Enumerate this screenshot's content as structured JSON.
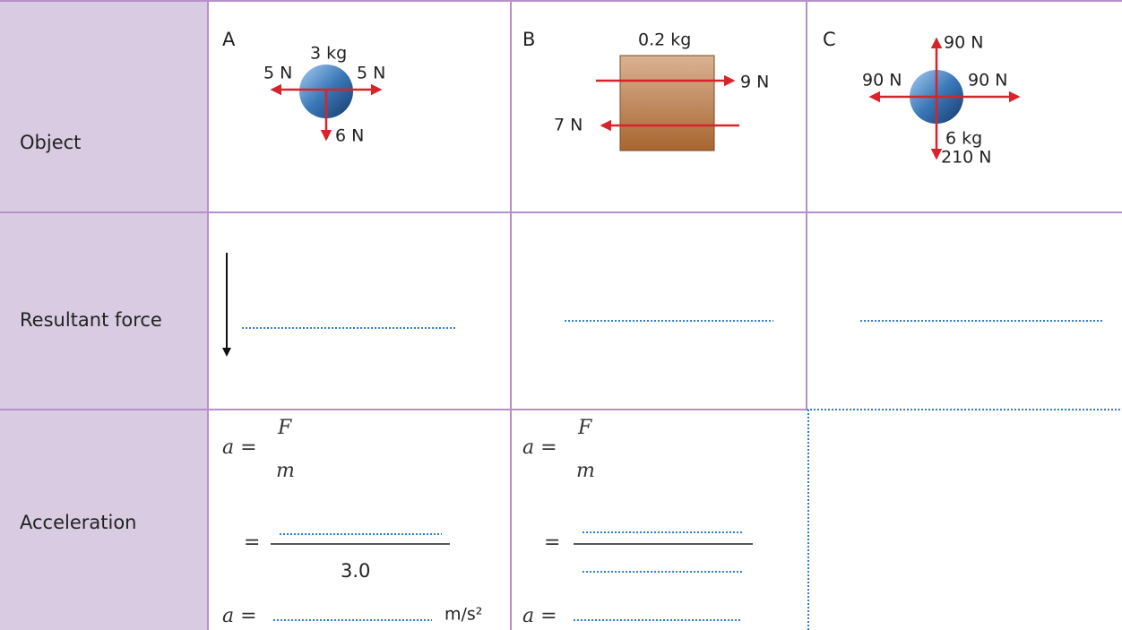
{
  "table": {
    "row_headers": [
      "Object",
      "Resultant force",
      "Acceleration"
    ],
    "objects": [
      {
        "label": "A",
        "mass": "3 kg",
        "forces": {
          "left": "5 N",
          "right": "5 N",
          "down": "6 N"
        }
      },
      {
        "label": "B",
        "mass": "0.2 kg",
        "forces": {
          "right": "9 N",
          "left": "7 N"
        }
      },
      {
        "label": "C",
        "mass": "6 kg",
        "forces": {
          "up": "90 N",
          "left": "90 N",
          "right": "90 N",
          "down": "210 N"
        }
      }
    ],
    "acceleration": [
      {
        "formula_lhs": "a =",
        "numerator": "F",
        "denominator": "m",
        "equals": "=",
        "given_mass": "3.0",
        "result_lhs": "a =",
        "unit": "m/s²"
      },
      {
        "formula_lhs": "a =",
        "numerator": "F",
        "denominator": "m",
        "equals": "=",
        "result_lhs": "a ="
      }
    ]
  }
}
